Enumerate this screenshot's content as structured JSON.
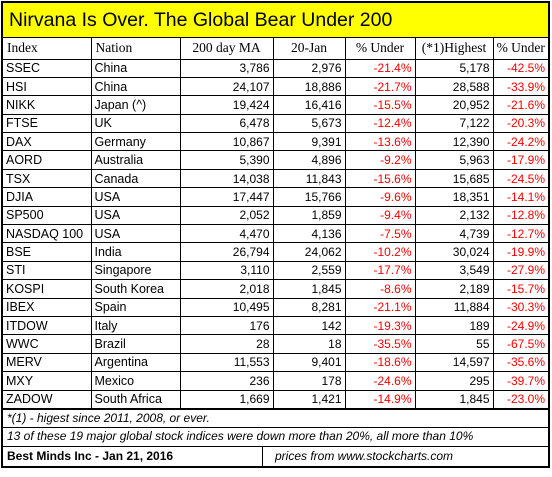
{
  "title": "Nirvana Is Over. The Global Bear Under 200",
  "headers": [
    "Index",
    "Nation",
    "200 day MA",
    "20-Jan",
    "% Under",
    "(*1)Highest",
    "% Under"
  ],
  "rows": [
    [
      "SSEC",
      "China",
      "3,786",
      "2,976",
      "-21.4%",
      "5,178",
      "-42.5%"
    ],
    [
      "HSI",
      "China",
      "24,107",
      "18,886",
      "-21.7%",
      "28,588",
      "-33.9%"
    ],
    [
      "NIKK",
      "Japan (^)",
      "19,424",
      "16,416",
      "-15.5%",
      "20,952",
      "-21.6%"
    ],
    [
      "FTSE",
      "UK",
      "6,478",
      "5,673",
      "-12.4%",
      "7,122",
      "-20.3%"
    ],
    [
      "DAX",
      "Germany",
      "10,867",
      "9,391",
      "-13.6%",
      "12,390",
      "-24.2%"
    ],
    [
      "AORD",
      "Australia",
      "5,390",
      "4,896",
      "-9.2%",
      "5,963",
      "-17.9%"
    ],
    [
      "TSX",
      "Canada",
      "14,038",
      "11,843",
      "-15.6%",
      "15,685",
      "-24.5%"
    ],
    [
      "DJIA",
      "USA",
      "17,447",
      "15,766",
      "-9.6%",
      "18,351",
      "-14.1%"
    ],
    [
      "SP500",
      "USA",
      "2,052",
      "1,859",
      "-9.4%",
      "2,132",
      "-12.8%"
    ],
    [
      "NASDAQ 100",
      "USA",
      "4,470",
      "4,136",
      "-7.5%",
      "4,739",
      "-12.7%"
    ],
    [
      "BSE",
      "India",
      "26,794",
      "24,062",
      "-10.2%",
      "30,024",
      "-19.9%"
    ],
    [
      "STI",
      "Singapore",
      "3,110",
      "2,559",
      "-17.7%",
      "3,549",
      "-27.9%"
    ],
    [
      "KOSPI",
      "South Korea",
      "2,018",
      "1,845",
      "-8.6%",
      "2,189",
      "-15.7%"
    ],
    [
      "IBEX",
      "Spain",
      "10,495",
      "8,281",
      "-21.1%",
      "11,884",
      "-30.3%"
    ],
    [
      "ITDOW",
      "Italy",
      "176",
      "142",
      "-19.3%",
      "189",
      "-24.9%"
    ],
    [
      "WWC",
      "Brazil",
      "28",
      "18",
      "-35.5%",
      "55",
      "-67.5%"
    ],
    [
      "MERV",
      "Argentina",
      "11,553",
      "9,401",
      "-18.6%",
      "14,597",
      "-35.6%"
    ],
    [
      "MXY",
      "Mexico",
      "236",
      "178",
      "-24.6%",
      "295",
      "-39.7%"
    ],
    [
      "ZADOW",
      "South Africa",
      "1,669",
      "1,421",
      "-14.9%",
      "1,845",
      "-23.0%"
    ]
  ],
  "notes": {
    "footnote": "*(1) - higest since 2011, 2008, or ever.",
    "summary": "13 of these 19 major global stock indices were down more than 20%, all more than 10%"
  },
  "footer": {
    "credit": "Best Minds Inc - Jan 21, 2016",
    "source": "prices from www.stockcharts.com"
  },
  "colors": {
    "title_background": "#ffff00",
    "negative_text": "#ff0000"
  }
}
